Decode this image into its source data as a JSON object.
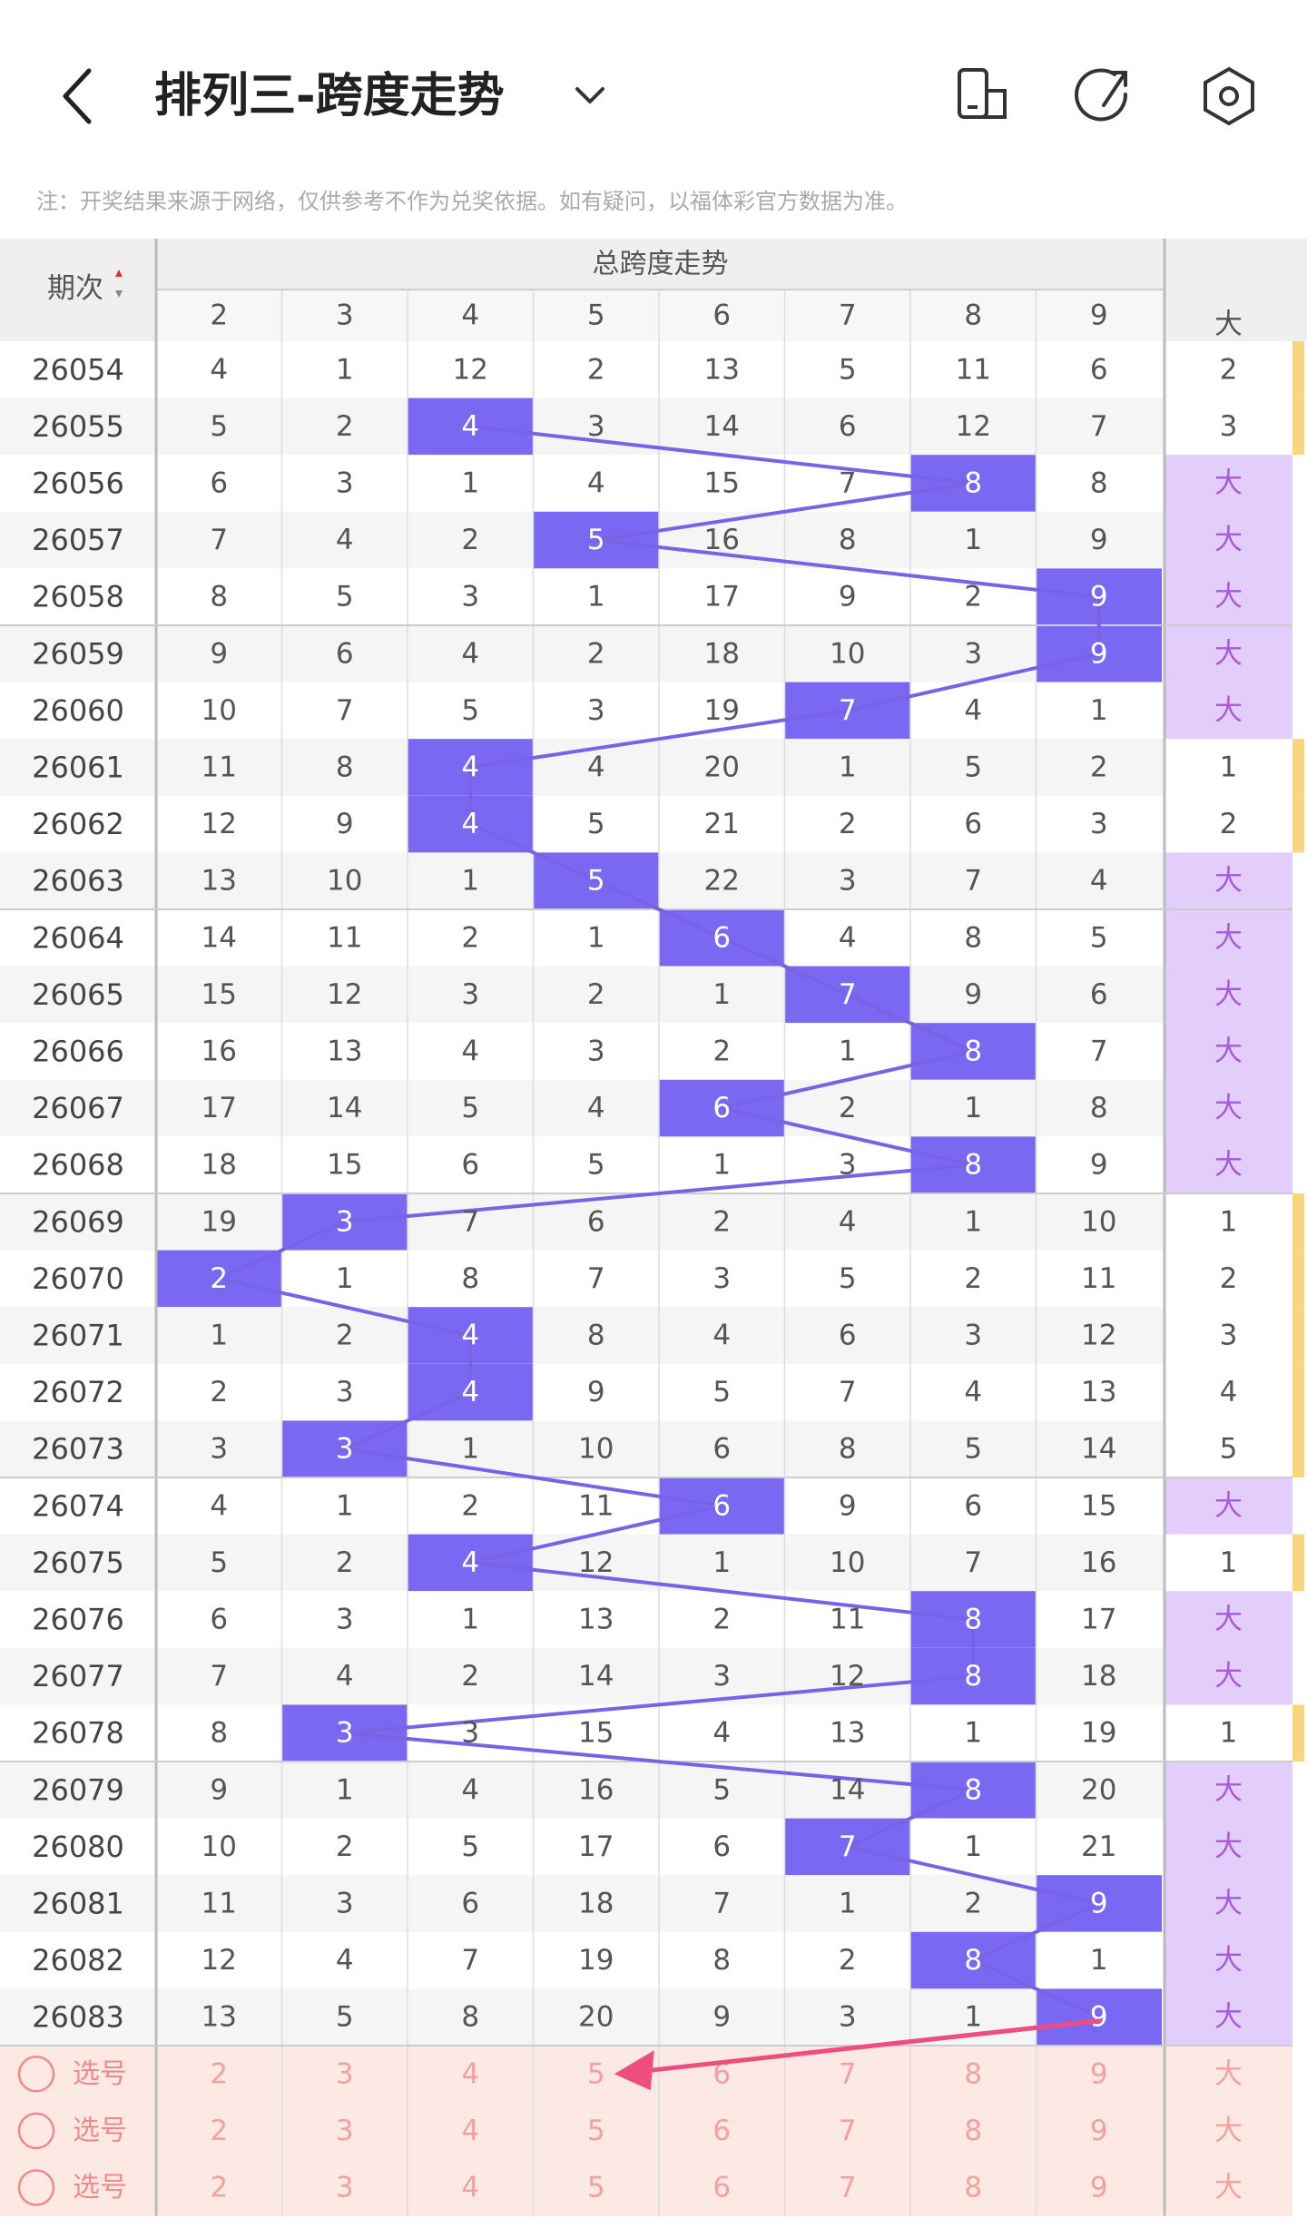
{
  "header": {
    "title": "排列三-跨度走势",
    "note": "注：开奖结果来源于网络，仅供参考不作为兑奖依据。如有疑问，以福体彩官方数据为准。"
  },
  "table": {
    "period_header": "期次",
    "group_header": "总跨度走势",
    "columns": [
      "2",
      "3",
      "4",
      "5",
      "6",
      "7",
      "8",
      "9"
    ],
    "big_header": "大",
    "rows": [
      {
        "period": "26054",
        "cells": [
          4,
          1,
          12,
          2,
          13,
          5,
          11,
          6
        ],
        "big": "2",
        "highlight": null
      },
      {
        "period": "26055",
        "cells": [
          5,
          2,
          4,
          3,
          14,
          6,
          12,
          7
        ],
        "big": "3",
        "highlight": 2
      },
      {
        "period": "26056",
        "cells": [
          6,
          3,
          1,
          4,
          15,
          7,
          8,
          8
        ],
        "big": "大",
        "highlight": 6
      },
      {
        "period": "26057",
        "cells": [
          7,
          4,
          2,
          5,
          16,
          8,
          1,
          9
        ],
        "big": "大",
        "highlight": 3
      },
      {
        "period": "26058",
        "cells": [
          8,
          5,
          3,
          1,
          17,
          9,
          2,
          9
        ],
        "big": "大",
        "highlight": 7
      },
      {
        "period": "26059",
        "cells": [
          9,
          6,
          4,
          2,
          18,
          10,
          3,
          9
        ],
        "big": "大",
        "highlight": 7
      },
      {
        "period": "26060",
        "cells": [
          10,
          7,
          5,
          3,
          19,
          7,
          4,
          1
        ],
        "big": "大",
        "highlight": 5
      },
      {
        "period": "26061",
        "cells": [
          11,
          8,
          4,
          4,
          20,
          1,
          5,
          2
        ],
        "big": "1",
        "highlight": 2
      },
      {
        "period": "26062",
        "cells": [
          12,
          9,
          4,
          5,
          21,
          2,
          6,
          3
        ],
        "big": "2",
        "highlight": 2
      },
      {
        "period": "26063",
        "cells": [
          13,
          10,
          1,
          5,
          22,
          3,
          7,
          4
        ],
        "big": "大",
        "highlight": 3
      },
      {
        "period": "26064",
        "cells": [
          14,
          11,
          2,
          1,
          6,
          4,
          8,
          5
        ],
        "big": "大",
        "highlight": 4
      },
      {
        "period": "26065",
        "cells": [
          15,
          12,
          3,
          2,
          1,
          7,
          9,
          6
        ],
        "big": "大",
        "highlight": 5
      },
      {
        "period": "26066",
        "cells": [
          16,
          13,
          4,
          3,
          2,
          1,
          8,
          7
        ],
        "big": "大",
        "highlight": 6
      },
      {
        "period": "26067",
        "cells": [
          17,
          14,
          5,
          4,
          6,
          2,
          1,
          8
        ],
        "big": "大",
        "highlight": 4
      },
      {
        "period": "26068",
        "cells": [
          18,
          15,
          6,
          5,
          1,
          3,
          8,
          9
        ],
        "big": "大",
        "highlight": 6
      },
      {
        "period": "26069",
        "cells": [
          19,
          3,
          7,
          6,
          2,
          4,
          1,
          10
        ],
        "big": "1",
        "highlight": 1
      },
      {
        "period": "26070",
        "cells": [
          2,
          1,
          8,
          7,
          3,
          5,
          2,
          11
        ],
        "big": "2",
        "highlight": 0
      },
      {
        "period": "26071",
        "cells": [
          1,
          2,
          4,
          8,
          4,
          6,
          3,
          12
        ],
        "big": "3",
        "highlight": 2
      },
      {
        "period": "26072",
        "cells": [
          2,
          3,
          4,
          9,
          5,
          7,
          4,
          13
        ],
        "big": "4",
        "highlight": 2
      },
      {
        "period": "26073",
        "cells": [
          3,
          3,
          1,
          10,
          6,
          8,
          5,
          14
        ],
        "big": "5",
        "highlight": 1
      },
      {
        "period": "26074",
        "cells": [
          4,
          1,
          2,
          11,
          6,
          9,
          6,
          15
        ],
        "big": "大",
        "highlight": 4
      },
      {
        "period": "26075",
        "cells": [
          5,
          2,
          4,
          12,
          1,
          10,
          7,
          16
        ],
        "big": "1",
        "highlight": 2
      },
      {
        "period": "26076",
        "cells": [
          6,
          3,
          1,
          13,
          2,
          11,
          8,
          17
        ],
        "big": "大",
        "highlight": 6
      },
      {
        "period": "26077",
        "cells": [
          7,
          4,
          2,
          14,
          3,
          12,
          8,
          18
        ],
        "big": "大",
        "highlight": 6
      },
      {
        "period": "26078",
        "cells": [
          8,
          3,
          3,
          15,
          4,
          13,
          1,
          19
        ],
        "big": "1",
        "highlight": 1
      },
      {
        "period": "26079",
        "cells": [
          9,
          1,
          4,
          16,
          5,
          14,
          8,
          20
        ],
        "big": "大",
        "highlight": 6
      },
      {
        "period": "26080",
        "cells": [
          10,
          2,
          5,
          17,
          6,
          7,
          1,
          21
        ],
        "big": "大",
        "highlight": 5
      },
      {
        "period": "26081",
        "cells": [
          11,
          3,
          6,
          18,
          7,
          1,
          2,
          9
        ],
        "big": "大",
        "highlight": 7
      },
      {
        "period": "26082",
        "cells": [
          12,
          4,
          7,
          19,
          8,
          2,
          8,
          1
        ],
        "big": "大",
        "highlight": 6
      },
      {
        "period": "26083",
        "cells": [
          13,
          5,
          8,
          20,
          9,
          3,
          1,
          9
        ],
        "big": "大",
        "highlight": 7
      }
    ],
    "picks": [
      {
        "label": "选号",
        "cells": [
          2,
          3,
          4,
          5,
          6,
          7,
          8,
          9
        ],
        "big": "大"
      },
      {
        "label": "选号",
        "cells": [
          2,
          3,
          4,
          5,
          6,
          7,
          8,
          9
        ],
        "big": "大"
      },
      {
        "label": "选号",
        "cells": [
          2,
          3,
          4,
          5,
          6,
          7,
          8,
          9
        ],
        "big": "大"
      }
    ]
  }
}
